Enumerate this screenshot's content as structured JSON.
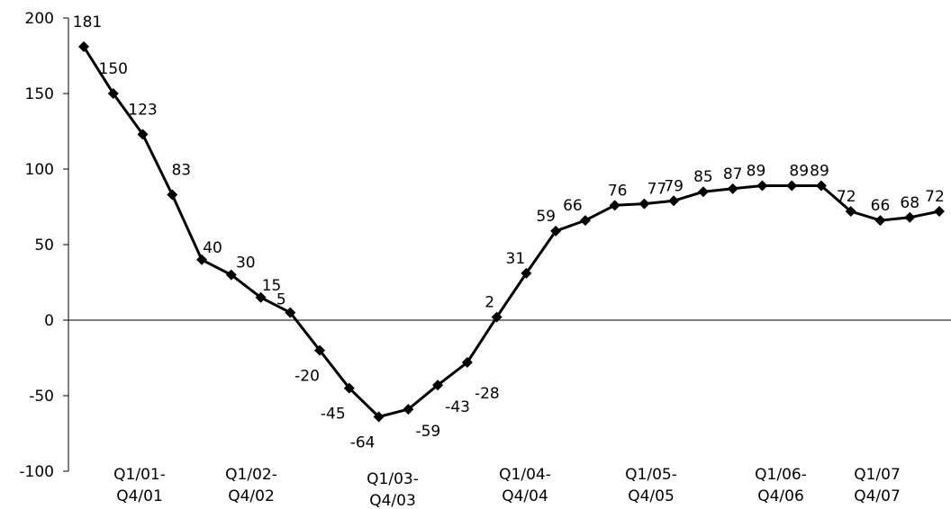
{
  "chart_data": {
    "type": "line",
    "values": [
      181,
      150,
      123,
      83,
      40,
      30,
      15,
      5,
      -20,
      -45,
      -64,
      -59,
      -43,
      -28,
      2,
      31,
      59,
      66,
      76,
      77,
      79,
      85,
      87,
      89,
      89,
      89,
      72,
      66,
      68,
      72
    ],
    "data_labels": [
      "181",
      "150",
      "123",
      "83",
      "40",
      "30",
      "15",
      "5",
      "-20",
      "-45",
      "-64",
      "-59",
      "-43",
      "-28",
      "2",
      "31",
      "59",
      "66",
      "76",
      "77",
      "79",
      "85",
      "87",
      "89",
      "89",
      "89",
      "72",
      "66",
      "68",
      "72"
    ],
    "category_labels": [
      {
        "line1": "Q1/01-",
        "line2": "Q4/01"
      },
      {
        "line1": "Q1/02-",
        "line2": "Q4/02"
      },
      {
        "line1": "Q1/03-",
        "line2": "Q4/03"
      },
      {
        "line1": "Q1/04-",
        "line2": "Q4/04"
      },
      {
        "line1": "Q1/05-",
        "line2": "Q4/05"
      },
      {
        "line1": "Q1/06-",
        "line2": "Q4/06"
      },
      {
        "line1": "Q1/07",
        "line2": "Q4/07"
      }
    ],
    "yticks": [
      "200",
      "150",
      "100",
      "50",
      "0",
      "-50",
      "-100"
    ],
    "ylim": [
      -100,
      200
    ],
    "title": "",
    "xlabel": "",
    "ylabel": "",
    "grid": false,
    "legend": "none",
    "line_color": "#000000",
    "marker": "diamond"
  }
}
